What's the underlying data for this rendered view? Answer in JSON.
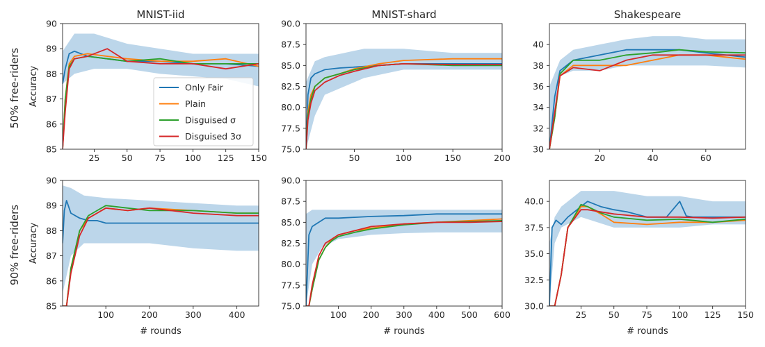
{
  "colors": {
    "Only Fair": "#1f77b4",
    "Plain": "#ff7f0e",
    "Disguised σ": "#2ca02c",
    "Disguised 3σ": "#d62728",
    "band": "#a6c8e3"
  },
  "row_labels": [
    "50% free-riders",
    "90% free-riders"
  ],
  "legend": [
    "Only Fair",
    "Plain",
    "Disguised σ",
    "Disguised 3σ"
  ],
  "chart_data": [
    {
      "type": "line",
      "title": "MNIST-iid",
      "xlabel": "",
      "ylabel": "Accuracy",
      "xlim": [
        1,
        150
      ],
      "ylim": [
        85,
        90
      ],
      "xticks": [
        25,
        50,
        75,
        100,
        125,
        150
      ],
      "yticks": [
        85,
        86,
        87,
        88,
        89,
        90
      ],
      "band": {
        "x": [
          1,
          10,
          25,
          50,
          75,
          100,
          125,
          150
        ],
        "low": [
          87.6,
          88.0,
          88.2,
          88.2,
          88.0,
          87.9,
          87.8,
          87.5
        ],
        "high": [
          88.9,
          89.6,
          89.6,
          89.2,
          89.0,
          88.8,
          88.8,
          88.8
        ]
      },
      "series": [
        {
          "name": "Only Fair",
          "x": [
            1,
            3,
            6,
            10,
            20,
            35,
            50,
            75,
            100,
            125,
            150
          ],
          "y": [
            87.6,
            88.2,
            88.8,
            88.9,
            88.7,
            88.6,
            88.5,
            88.5,
            88.4,
            88.4,
            88.3
          ]
        },
        {
          "name": "Plain",
          "x": [
            1,
            3,
            6,
            10,
            20,
            35,
            50,
            75,
            100,
            125,
            150
          ],
          "y": [
            85.0,
            87.0,
            88.4,
            88.7,
            88.8,
            88.7,
            88.6,
            88.5,
            88.5,
            88.6,
            88.3
          ]
        },
        {
          "name": "Disguised σ",
          "x": [
            1,
            3,
            6,
            10,
            20,
            35,
            50,
            75,
            100,
            125,
            150
          ],
          "y": [
            85.0,
            87.0,
            88.3,
            88.6,
            88.7,
            88.6,
            88.5,
            88.6,
            88.4,
            88.4,
            88.4
          ]
        },
        {
          "name": "Disguised 3σ",
          "x": [
            1,
            3,
            6,
            10,
            20,
            35,
            50,
            75,
            100,
            125,
            150
          ],
          "y": [
            85.0,
            86.5,
            88.2,
            88.6,
            88.7,
            89.0,
            88.5,
            88.4,
            88.4,
            88.2,
            88.4
          ]
        }
      ]
    },
    {
      "type": "line",
      "title": "MNIST-shard",
      "xlabel": "",
      "ylabel": "",
      "xlim": [
        1,
        200
      ],
      "ylim": [
        75,
        90
      ],
      "xticks": [
        50,
        100,
        150,
        200
      ],
      "yticks": [
        75.0,
        77.5,
        80.0,
        82.5,
        85.0,
        87.5,
        90.0
      ],
      "yticklabels": [
        "75.0",
        "77.5",
        "80.0",
        "82.5",
        "85.0",
        "87.5",
        "90.0"
      ],
      "band": {
        "x": [
          1,
          10,
          20,
          40,
          60,
          80,
          100,
          150,
          200
        ],
        "low": [
          75.0,
          79.0,
          81.5,
          82.5,
          83.5,
          84.0,
          84.5,
          84.5,
          84.5
        ],
        "high": [
          83.0,
          85.5,
          86.0,
          86.5,
          87.0,
          87.0,
          87.0,
          86.5,
          86.5
        ]
      },
      "series": [
        {
          "name": "Only Fair",
          "x": [
            1,
            3,
            6,
            10,
            20,
            35,
            50,
            75,
            100,
            150,
            200
          ],
          "y": [
            75.0,
            81.5,
            83.5,
            84.0,
            84.5,
            84.7,
            84.8,
            85.0,
            85.2,
            85.2,
            85.2
          ]
        },
        {
          "name": "Plain",
          "x": [
            1,
            3,
            6,
            10,
            20,
            35,
            50,
            75,
            100,
            150,
            200
          ],
          "y": [
            75.0,
            79.5,
            81.5,
            82.5,
            83.5,
            84.0,
            84.6,
            85.2,
            85.6,
            85.8,
            85.8
          ]
        },
        {
          "name": "Disguised σ",
          "x": [
            1,
            3,
            6,
            10,
            20,
            35,
            50,
            75,
            100,
            150,
            200
          ],
          "y": [
            75.0,
            79.0,
            81.0,
            82.5,
            83.5,
            84.0,
            84.5,
            85.0,
            85.2,
            85.0,
            85.0
          ]
        },
        {
          "name": "Disguised 3σ",
          "x": [
            1,
            3,
            6,
            10,
            20,
            35,
            50,
            75,
            100,
            150,
            200
          ],
          "y": [
            75.0,
            78.5,
            80.5,
            82.0,
            83.0,
            83.8,
            84.3,
            85.0,
            85.2,
            85.1,
            85.1
          ]
        }
      ]
    },
    {
      "type": "line",
      "title": "Shakespeare",
      "xlabel": "",
      "ylabel": "",
      "xlim": [
        1,
        75
      ],
      "ylim": [
        30,
        42
      ],
      "xticks": [
        20,
        40,
        60
      ],
      "yticks": [
        30,
        32,
        34,
        36,
        38,
        40
      ],
      "band": {
        "x": [
          1,
          5,
          10,
          20,
          30,
          40,
          50,
          60,
          75
        ],
        "low": [
          30.0,
          37.0,
          37.5,
          37.5,
          38.0,
          38.0,
          38.0,
          38.0,
          37.8
        ],
        "high": [
          36.0,
          38.5,
          39.5,
          40.0,
          40.5,
          40.8,
          40.8,
          40.5,
          40.5
        ]
      },
      "series": [
        {
          "name": "Only Fair",
          "x": [
            1,
            3,
            5,
            10,
            20,
            30,
            40,
            50,
            60,
            75
          ],
          "y": [
            30.0,
            35.0,
            37.5,
            38.5,
            39.0,
            39.5,
            39.5,
            39.5,
            39.2,
            38.8
          ]
        },
        {
          "name": "Plain",
          "x": [
            1,
            3,
            5,
            10,
            20,
            30,
            40,
            50,
            60,
            75
          ],
          "y": [
            30.0,
            33.0,
            37.0,
            38.0,
            38.0,
            38.0,
            38.5,
            39.0,
            39.0,
            38.6
          ]
        },
        {
          "name": "Disguised σ",
          "x": [
            1,
            3,
            5,
            10,
            20,
            30,
            40,
            50,
            60,
            75
          ],
          "y": [
            30.0,
            33.0,
            37.2,
            38.5,
            38.5,
            39.0,
            39.2,
            39.5,
            39.3,
            39.2
          ]
        },
        {
          "name": "Disguised 3σ",
          "x": [
            1,
            3,
            5,
            10,
            20,
            30,
            40,
            50,
            60,
            75
          ],
          "y": [
            30.0,
            33.5,
            37.0,
            37.8,
            37.5,
            38.5,
            39.0,
            39.0,
            39.0,
            39.0
          ]
        }
      ]
    },
    {
      "type": "line",
      "title": "",
      "xlabel": "# rounds",
      "ylabel": "Accuracy",
      "xlim": [
        1,
        450
      ],
      "ylim": [
        85,
        90
      ],
      "xticks": [
        100,
        200,
        300,
        400
      ],
      "yticks": [
        85,
        86,
        87,
        88,
        89,
        90
      ],
      "band": {
        "x": [
          1,
          20,
          50,
          100,
          200,
          300,
          400,
          450
        ],
        "low": [
          85.5,
          87.0,
          87.5,
          87.5,
          87.5,
          87.3,
          87.2,
          87.2
        ],
        "high": [
          89.8,
          89.7,
          89.4,
          89.3,
          89.2,
          89.1,
          89.0,
          89.0
        ]
      },
      "series": [
        {
          "name": "Only Fair",
          "x": [
            1,
            5,
            10,
            20,
            40,
            60,
            80,
            100,
            150,
            200,
            300,
            400,
            450
          ],
          "y": [
            87.5,
            88.8,
            89.2,
            88.7,
            88.5,
            88.4,
            88.4,
            88.3,
            88.3,
            88.3,
            88.3,
            88.3,
            88.3
          ]
        },
        {
          "name": "Plain",
          "x": [
            1,
            5,
            10,
            20,
            40,
            60,
            80,
            100,
            150,
            200,
            300,
            400,
            450
          ],
          "y": [
            85.0,
            85.0,
            85.0,
            86.5,
            88.0,
            88.5,
            88.7,
            88.9,
            88.8,
            88.9,
            88.8,
            88.7,
            88.7
          ]
        },
        {
          "name": "Disguised σ",
          "x": [
            1,
            5,
            10,
            20,
            40,
            60,
            80,
            100,
            150,
            200,
            300,
            400,
            450
          ],
          "y": [
            85.0,
            85.0,
            85.0,
            86.5,
            88.0,
            88.6,
            88.8,
            89.0,
            88.9,
            88.8,
            88.8,
            88.7,
            88.7
          ]
        },
        {
          "name": "Disguised 3σ",
          "x": [
            1,
            5,
            10,
            20,
            40,
            60,
            80,
            100,
            150,
            200,
            300,
            400,
            450
          ],
          "y": [
            85.0,
            85.0,
            85.0,
            86.3,
            87.8,
            88.5,
            88.7,
            88.9,
            88.8,
            88.9,
            88.7,
            88.6,
            88.6
          ]
        }
      ]
    },
    {
      "type": "line",
      "title": "",
      "xlabel": "# rounds",
      "ylabel": "",
      "xlim": [
        1,
        600
      ],
      "ylim": [
        75,
        90
      ],
      "xticks": [
        100,
        200,
        300,
        400,
        500,
        600
      ],
      "yticks": [
        75.0,
        77.5,
        80.0,
        82.5,
        85.0,
        87.5,
        90.0
      ],
      "yticklabels": [
        "75.0",
        "77.5",
        "80.0",
        "82.5",
        "85.0",
        "87.5",
        "90.0"
      ],
      "band": {
        "x": [
          1,
          20,
          50,
          100,
          200,
          300,
          400,
          500,
          600
        ],
        "low": [
          75.0,
          80.0,
          82.0,
          83.0,
          83.5,
          83.7,
          83.8,
          83.8,
          83.8
        ],
        "high": [
          86.0,
          86.5,
          86.5,
          86.5,
          86.5,
          86.5,
          86.5,
          86.5,
          86.5
        ]
      },
      "series": [
        {
          "name": "Only Fair",
          "x": [
            1,
            10,
            20,
            40,
            60,
            80,
            100,
            150,
            200,
            300,
            400,
            500,
            600
          ],
          "y": [
            75.0,
            83.5,
            84.5,
            85.0,
            85.5,
            85.5,
            85.5,
            85.6,
            85.7,
            85.8,
            86.0,
            86.0,
            86.0
          ]
        },
        {
          "name": "Plain",
          "x": [
            1,
            10,
            20,
            40,
            60,
            80,
            100,
            150,
            200,
            300,
            400,
            500,
            600
          ],
          "y": [
            75.0,
            75.0,
            77.0,
            80.5,
            82.0,
            83.0,
            83.5,
            84.0,
            84.3,
            84.8,
            85.0,
            85.2,
            85.4
          ]
        },
        {
          "name": "Disguised σ",
          "x": [
            1,
            10,
            20,
            40,
            60,
            80,
            100,
            150,
            200,
            300,
            400,
            500,
            600
          ],
          "y": [
            75.0,
            75.0,
            77.0,
            80.5,
            82.0,
            82.8,
            83.3,
            83.8,
            84.2,
            84.7,
            85.0,
            85.1,
            85.2
          ]
        },
        {
          "name": "Disguised 3σ",
          "x": [
            1,
            10,
            20,
            40,
            60,
            80,
            100,
            150,
            200,
            300,
            400,
            500,
            600
          ],
          "y": [
            75.0,
            75.0,
            77.5,
            81.0,
            82.5,
            83.0,
            83.5,
            84.0,
            84.5,
            84.8,
            85.0,
            85.0,
            85.1
          ]
        }
      ]
    },
    {
      "type": "line",
      "title": "",
      "xlabel": "# rounds",
      "ylabel": "",
      "xlim": [
        1,
        150
      ],
      "ylim": [
        30,
        42
      ],
      "xticks": [
        25,
        50,
        75,
        100,
        125,
        150
      ],
      "yticks": [
        30.0,
        32.5,
        35.0,
        37.5,
        40.0
      ],
      "yticklabels": [
        "30.0",
        "32.5",
        "35.0",
        "37.5",
        "40.0"
      ],
      "band": {
        "x": [
          1,
          5,
          10,
          25,
          50,
          75,
          100,
          125,
          150
        ],
        "low": [
          30.0,
          36.0,
          37.5,
          38.5,
          37.5,
          37.5,
          37.5,
          37.8,
          37.8
        ],
        "high": [
          36.0,
          38.5,
          39.5,
          41.0,
          41.0,
          40.5,
          40.5,
          40.0,
          40.0
        ]
      },
      "series": [
        {
          "name": "Only Fair",
          "x": [
            1,
            3,
            6,
            10,
            15,
            25,
            30,
            40,
            50,
            60,
            75,
            90,
            100,
            105,
            110,
            125,
            150
          ],
          "y": [
            30.0,
            37.5,
            38.2,
            37.8,
            38.5,
            39.5,
            40.0,
            39.5,
            39.2,
            39.0,
            38.5,
            38.5,
            40.0,
            38.6,
            38.5,
            38.5,
            38.5
          ]
        },
        {
          "name": "Plain",
          "x": [
            1,
            5,
            10,
            15,
            25,
            30,
            40,
            50,
            75,
            100,
            125,
            150
          ],
          "y": [
            30.0,
            30.0,
            33.0,
            37.5,
            39.5,
            39.5,
            38.8,
            38.0,
            37.8,
            38.0,
            38.0,
            38.2
          ]
        },
        {
          "name": "Disguised σ",
          "x": [
            1,
            5,
            10,
            15,
            25,
            30,
            40,
            50,
            75,
            100,
            125,
            150
          ],
          "y": [
            30.0,
            30.0,
            33.0,
            37.5,
            39.7,
            39.5,
            38.9,
            38.5,
            38.2,
            38.3,
            38.0,
            38.3
          ]
        },
        {
          "name": "Disguised 3σ",
          "x": [
            1,
            5,
            10,
            15,
            25,
            30,
            40,
            50,
            75,
            100,
            125,
            150
          ],
          "y": [
            30.0,
            30.0,
            33.0,
            37.5,
            39.2,
            39.2,
            39.0,
            38.8,
            38.5,
            38.5,
            38.4,
            38.5
          ]
        }
      ]
    }
  ]
}
